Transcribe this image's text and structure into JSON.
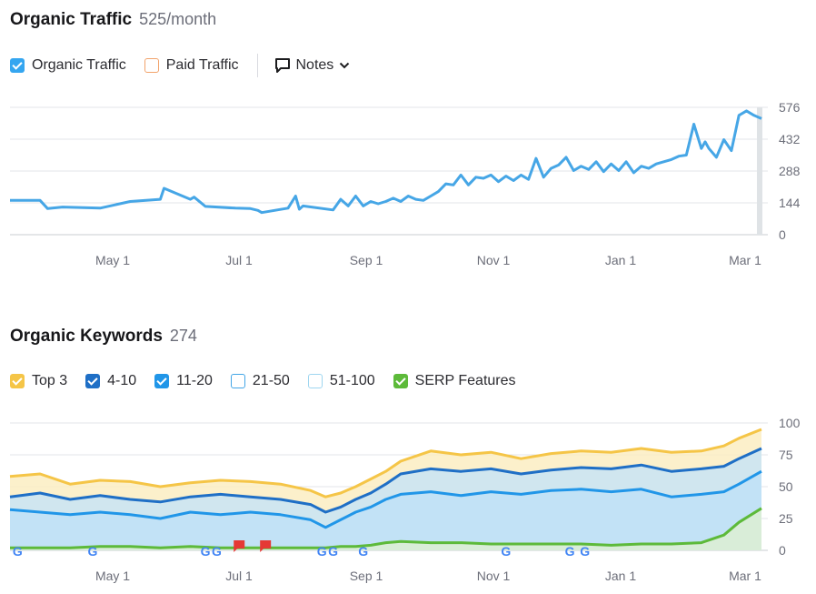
{
  "organic_traffic": {
    "title": "Organic Traffic",
    "value": "525/month",
    "legend": {
      "organic_label": "Organic Traffic",
      "paid_label": "Paid Traffic",
      "notes_label": "Notes"
    }
  },
  "organic_keywords": {
    "title": "Organic Keywords",
    "value": "274",
    "legend": [
      {
        "label": "Top 3",
        "checked": true,
        "color": "#f5c547"
      },
      {
        "label": "4-10",
        "checked": true,
        "color": "#1f6fc6"
      },
      {
        "label": "11-20",
        "checked": true,
        "color": "#2196e8"
      },
      {
        "label": "21-50",
        "checked": false,
        "color": "#43a6e6"
      },
      {
        "label": "51-100",
        "checked": false,
        "color": "#9fd6f0"
      },
      {
        "label": "SERP Features",
        "checked": true,
        "color": "#5dba3a"
      }
    ]
  },
  "colors": {
    "traffic_line": "#46a6e6",
    "top3": "#f5c547",
    "top3_fill": "#fcedc2",
    "pos4_10": "#1f6fc6",
    "pos4_10_fill": "#c8e4f6",
    "pos11_20": "#2196e8",
    "pos11_20_fill": "#bfe1f7",
    "serp": "#5dba3a",
    "serp_fill": "#ddefd2",
    "google_marker": "#4285f4",
    "note_marker": "#e53935"
  },
  "chart_data": [
    {
      "type": "line",
      "title": "Organic Traffic",
      "y_ticks": [
        0,
        144,
        288,
        432,
        576
      ],
      "ylim": [
        0,
        576
      ],
      "x_ticks": [
        "May 1",
        "Jul 1",
        "Sep 1",
        "Nov 1",
        "Jan 1",
        "Mar 1"
      ],
      "grid": true,
      "x": [
        0,
        0.04,
        0.05,
        0.07,
        0.12,
        0.16,
        0.2,
        0.205,
        0.24,
        0.245,
        0.26,
        0.3,
        0.32,
        0.33,
        0.335,
        0.37,
        0.38,
        0.385,
        0.39,
        0.43,
        0.44,
        0.45,
        0.46,
        0.47,
        0.48,
        0.49,
        0.5,
        0.51,
        0.52,
        0.53,
        0.54,
        0.55,
        0.56,
        0.57,
        0.58,
        0.59,
        0.6,
        0.61,
        0.62,
        0.63,
        0.64,
        0.65,
        0.66,
        0.67,
        0.68,
        0.69,
        0.7,
        0.71,
        0.72,
        0.73,
        0.74,
        0.75,
        0.76,
        0.77,
        0.78,
        0.79,
        0.8,
        0.81,
        0.82,
        0.83,
        0.84,
        0.85,
        0.86,
        0.87,
        0.88,
        0.89,
        0.9,
        0.91,
        0.92,
        0.925,
        0.93,
        0.94,
        0.95,
        0.96,
        0.97,
        0.98,
        0.99,
        1
      ],
      "series": [
        {
          "values": [
            155,
            155,
            118,
            125,
            120,
            150,
            160,
            210,
            160,
            170,
            128,
            120,
            118,
            110,
            100,
            120,
            175,
            115,
            130,
            112,
            160,
            130,
            175,
            130,
            150,
            140,
            150,
            165,
            150,
            175,
            160,
            155,
            175,
            195,
            230,
            225,
            270,
            225,
            260,
            255,
            270,
            240,
            265,
            245,
            270,
            250,
            345,
            260,
            300,
            315,
            350,
            290,
            310,
            295,
            330,
            285,
            320,
            290,
            330,
            280,
            310,
            300,
            320,
            330,
            340,
            355,
            360,
            500,
            390,
            420,
            390,
            350,
            430,
            380,
            540,
            560,
            540,
            525
          ]
        }
      ]
    },
    {
      "type": "area",
      "title": "Organic Keywords",
      "y_ticks": [
        0,
        25,
        50,
        75,
        100
      ],
      "ylim": [
        0,
        100
      ],
      "x_ticks": [
        "May 1",
        "Jul 1",
        "Sep 1",
        "Nov 1",
        "Jan 1",
        "Mar 1"
      ],
      "grid": true,
      "x": [
        0,
        0.04,
        0.08,
        0.12,
        0.16,
        0.2,
        0.24,
        0.28,
        0.32,
        0.36,
        0.4,
        0.42,
        0.44,
        0.46,
        0.48,
        0.5,
        0.52,
        0.56,
        0.6,
        0.64,
        0.68,
        0.72,
        0.76,
        0.8,
        0.84,
        0.88,
        0.92,
        0.95,
        0.97,
        1
      ],
      "series": [
        {
          "name": "Top 3",
          "values": [
            58,
            60,
            52,
            55,
            54,
            50,
            53,
            55,
            54,
            52,
            47,
            42,
            45,
            50,
            56,
            62,
            70,
            78,
            75,
            77,
            72,
            76,
            78,
            77,
            80,
            77,
            78,
            82,
            88,
            95
          ]
        },
        {
          "name": "4-10",
          "values": [
            42,
            45,
            40,
            43,
            40,
            38,
            42,
            44,
            42,
            40,
            36,
            30,
            34,
            40,
            45,
            52,
            60,
            64,
            62,
            64,
            60,
            63,
            65,
            64,
            67,
            62,
            64,
            66,
            72,
            80
          ]
        },
        {
          "name": "11-20",
          "values": [
            32,
            30,
            28,
            30,
            28,
            25,
            30,
            28,
            30,
            28,
            24,
            18,
            24,
            30,
            34,
            40,
            44,
            46,
            43,
            46,
            44,
            47,
            48,
            46,
            48,
            42,
            44,
            46,
            52,
            62
          ]
        },
        {
          "name": "SERP Features",
          "values": [
            2,
            2,
            2,
            3,
            3,
            2,
            3,
            2,
            2,
            2,
            2,
            2,
            3,
            3,
            4,
            6,
            7,
            6,
            6,
            5,
            5,
            5,
            5,
            4,
            5,
            5,
            6,
            12,
            22,
            33
          ]
        }
      ],
      "markers": {
        "google_x": [
          0.01,
          0.11,
          0.26,
          0.275,
          0.415,
          0.43,
          0.47,
          0.66,
          0.745,
          0.765
        ],
        "note_x": [
          0.305,
          0.34
        ]
      }
    }
  ]
}
